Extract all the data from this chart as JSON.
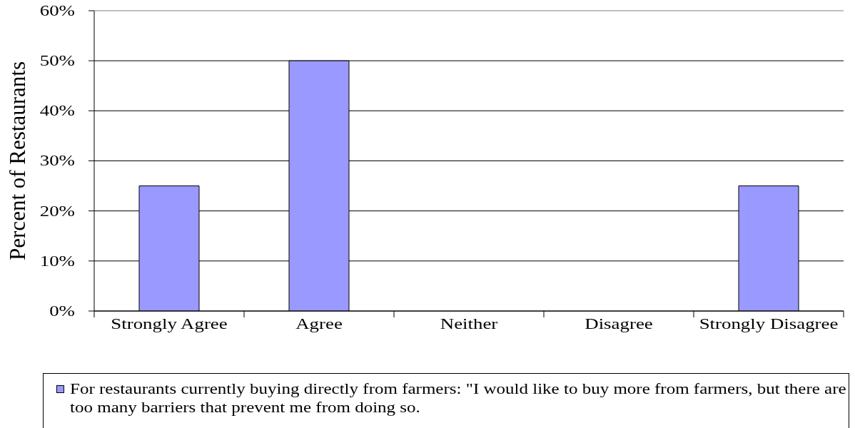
{
  "chart_data": {
    "type": "bar",
    "ylabel": "Percent of Restaurants",
    "categories": [
      "Strongly Agree",
      "Agree",
      "Neither",
      "Disagree",
      "Strongly Disagree"
    ],
    "series": [
      {
        "name": "For restaurants currently buying directly from farmers: \"I would like to buy more from farmers, but there are too many barriers that prevent me from doing so.",
        "color": "#9999ff",
        "values": [
          25,
          50,
          0,
          0,
          25
        ]
      }
    ],
    "ylim": [
      0,
      60
    ],
    "yticks": [
      {
        "value": 0,
        "label": "0%"
      },
      {
        "value": 10,
        "label": "10%"
      },
      {
        "value": 20,
        "label": "20%"
      },
      {
        "value": 30,
        "label": "30%"
      },
      {
        "value": 40,
        "label": "40%"
      },
      {
        "value": 50,
        "label": "50%"
      },
      {
        "value": 60,
        "label": "60%"
      }
    ],
    "grid": "y",
    "legend": "bottom"
  }
}
